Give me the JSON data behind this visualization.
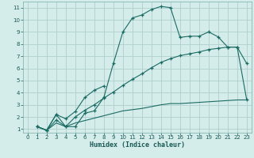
{
  "xlabel": "Humidex (Indice chaleur)",
  "bg_color": "#d4ecea",
  "grid_color": "#b0cfcc",
  "line_color": "#1a6b63",
  "xlim": [
    -0.5,
    23.5
  ],
  "ylim": [
    0.7,
    11.5
  ],
  "xticks": [
    0,
    1,
    2,
    3,
    4,
    5,
    6,
    7,
    8,
    9,
    10,
    11,
    12,
    13,
    14,
    15,
    16,
    17,
    18,
    19,
    20,
    21,
    22,
    23
  ],
  "yticks": [
    1,
    2,
    3,
    4,
    5,
    6,
    7,
    8,
    9,
    10,
    11
  ],
  "series": [
    {
      "x": [
        1,
        2,
        3,
        4,
        5,
        6,
        7,
        8,
        9,
        10,
        11,
        12,
        13,
        14,
        15,
        16,
        17,
        18,
        19,
        20,
        21,
        22,
        23
      ],
      "y": [
        1.2,
        0.9,
        2.2,
        1.2,
        1.2,
        2.3,
        2.5,
        3.6,
        6.4,
        9.0,
        10.15,
        10.4,
        10.85,
        11.1,
        11.0,
        8.55,
        8.65,
        8.65,
        9.0,
        8.6,
        7.75,
        7.75,
        6.4
      ],
      "marker": "+"
    },
    {
      "x": [
        1,
        2,
        3,
        4,
        5,
        6,
        7,
        8
      ],
      "y": [
        1.2,
        0.9,
        2.2,
        1.85,
        2.45,
        3.6,
        4.2,
        4.55
      ],
      "marker": "+"
    },
    {
      "x": [
        1,
        2,
        3,
        4,
        5,
        6,
        7,
        8,
        9,
        10,
        11,
        12,
        13,
        14,
        15,
        16,
        17,
        18,
        19,
        20,
        21,
        22,
        23
      ],
      "y": [
        1.2,
        0.9,
        1.75,
        1.2,
        2.0,
        2.55,
        3.0,
        3.55,
        4.05,
        4.6,
        5.1,
        5.55,
        6.05,
        6.5,
        6.8,
        7.05,
        7.2,
        7.35,
        7.55,
        7.65,
        7.75,
        7.75,
        3.4
      ],
      "marker": "+"
    },
    {
      "x": [
        1,
        2,
        3,
        4,
        5,
        6,
        7,
        8,
        9,
        10,
        11,
        12,
        13,
        14,
        15,
        16,
        17,
        18,
        19,
        20,
        21,
        22,
        23
      ],
      "y": [
        1.2,
        0.9,
        1.5,
        1.2,
        1.5,
        1.7,
        1.9,
        2.1,
        2.3,
        2.5,
        2.6,
        2.7,
        2.85,
        3.0,
        3.1,
        3.1,
        3.15,
        3.2,
        3.25,
        3.3,
        3.35,
        3.4,
        3.4
      ],
      "marker": null
    }
  ]
}
